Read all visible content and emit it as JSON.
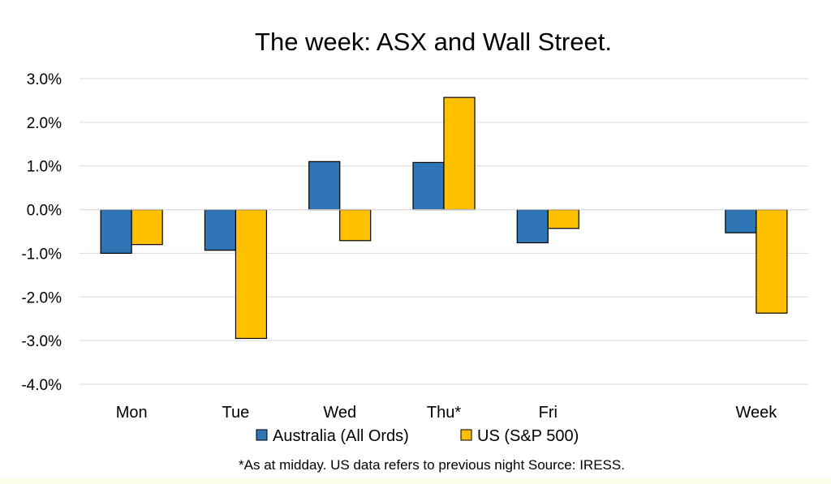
{
  "chart_data": {
    "type": "bar",
    "title": "The week:  ASX and Wall Street.",
    "categories": [
      "Mon",
      "Tue",
      "Wed",
      "Thu*",
      "Fri",
      "",
      "Week"
    ],
    "series": [
      {
        "name": "Australia (All Ords)",
        "color": "#2e75b6",
        "values": [
          -1.0,
          -0.93,
          1.1,
          1.08,
          -0.76,
          null,
          -0.53
        ]
      },
      {
        "name": "US (S&P 500)",
        "color": "#ffc000",
        "values": [
          -0.8,
          -2.95,
          -0.71,
          2.57,
          -0.43,
          null,
          -2.37
        ]
      }
    ],
    "ylim": [
      -4.0,
      3.0
    ],
    "yticks": [
      3.0,
      2.0,
      1.0,
      0.0,
      -1.0,
      -2.0,
      -3.0,
      -4.0
    ],
    "ytick_labels": [
      "3.0%",
      "2.0%",
      "1.0%",
      "0.0%",
      "-1.0%",
      "-2.0%",
      "-3.0%",
      "-4.0%"
    ],
    "grid": true,
    "legend": "bottom",
    "footnote": "*As at midday. US data refers to previous night  Source:  IRESS."
  }
}
